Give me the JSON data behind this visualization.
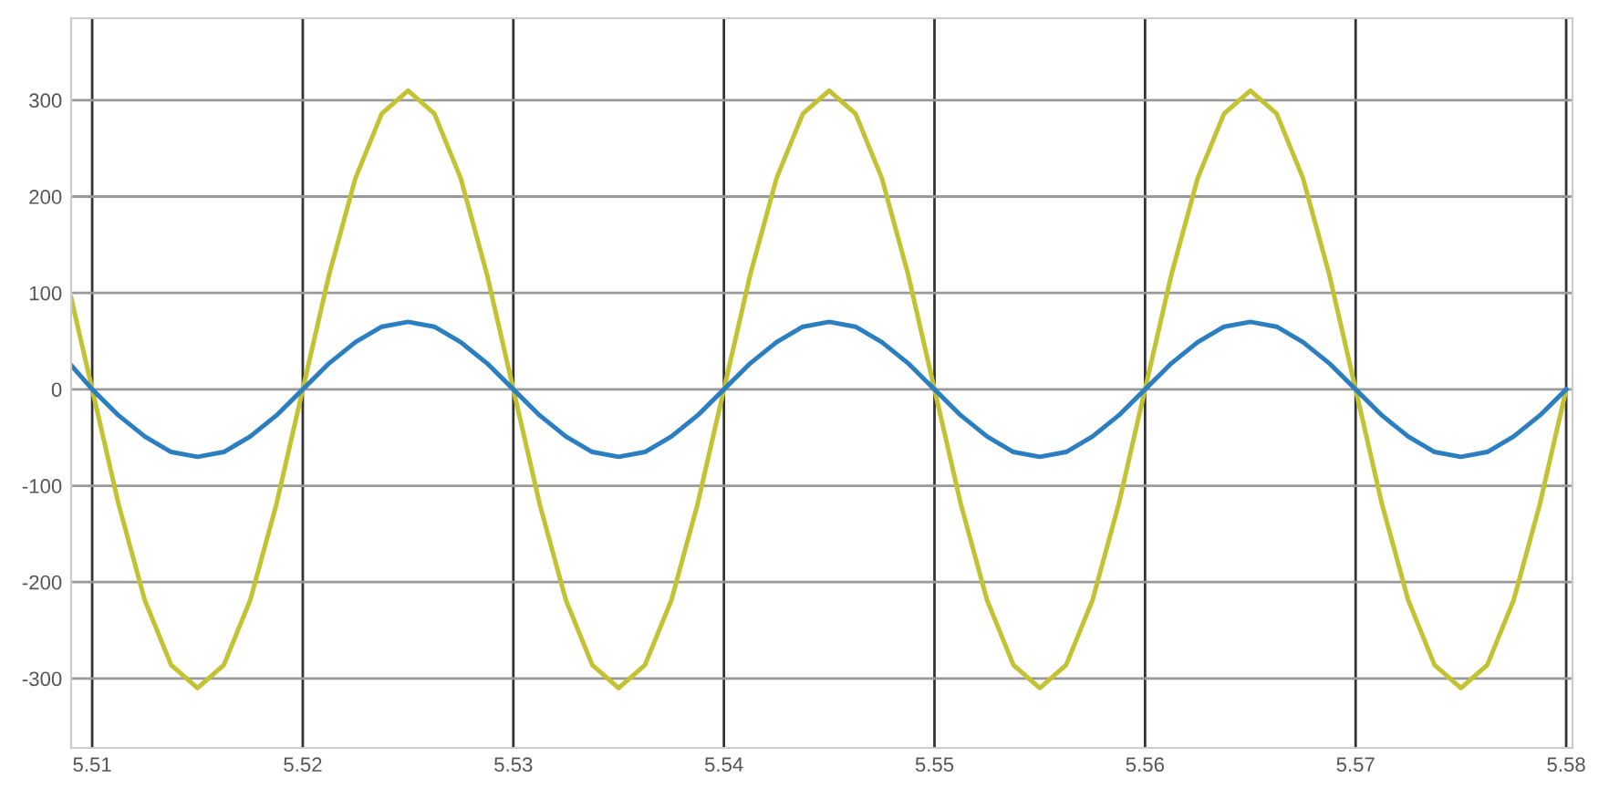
{
  "chart_data": {
    "type": "line",
    "x": [
      5.509,
      5.51,
      5.51125,
      5.5125,
      5.51375,
      5.515,
      5.51625,
      5.5175,
      5.51875,
      5.52,
      5.52125,
      5.5225,
      5.52375,
      5.525,
      5.52625,
      5.5275,
      5.52875,
      5.53,
      5.53125,
      5.5325,
      5.53375,
      5.535,
      5.53625,
      5.5375,
      5.53875,
      5.54,
      5.54125,
      5.5425,
      5.54375,
      5.545,
      5.54625,
      5.5475,
      5.54875,
      5.55,
      5.55125,
      5.5525,
      5.55375,
      5.555,
      5.55625,
      5.5575,
      5.55875,
      5.56,
      5.56125,
      5.5625,
      5.56375,
      5.565,
      5.56625,
      5.5675,
      5.56875,
      5.57,
      5.57125,
      5.5725,
      5.57375,
      5.575,
      5.57625,
      5.5775,
      5.57875,
      5.58
    ],
    "series": [
      {
        "color": "#c2c232",
        "values": [
          95,
          0,
          -119,
          -219,
          -286,
          -310,
          -286,
          -219,
          -119,
          0,
          119,
          219,
          286,
          310,
          286,
          219,
          119,
          0,
          -119,
          -219,
          -286,
          -310,
          -286,
          -219,
          -119,
          0,
          119,
          219,
          286,
          310,
          286,
          219,
          119,
          0,
          -119,
          -219,
          -286,
          -310,
          -286,
          -219,
          -119,
          0,
          119,
          219,
          286,
          310,
          286,
          219,
          119,
          0,
          -119,
          -219,
          -286,
          -310,
          -286,
          -219,
          -119,
          0
        ]
      },
      {
        "color": "#2b7fc1",
        "values": [
          25,
          0,
          -27,
          -49,
          -65,
          -70,
          -65,
          -49,
          -27,
          0,
          27,
          49,
          65,
          70,
          65,
          49,
          27,
          0,
          -27,
          -49,
          -65,
          -70,
          -65,
          -49,
          -27,
          0,
          27,
          49,
          65,
          70,
          65,
          49,
          27,
          0,
          -27,
          -49,
          -65,
          -70,
          -65,
          -49,
          -27,
          0,
          27,
          49,
          65,
          70,
          65,
          49,
          27,
          0,
          -27,
          -49,
          -65,
          -70,
          -65,
          -49,
          -27,
          0
        ]
      }
    ],
    "xlim": [
      5.509,
      5.5803
    ],
    "ylim": [
      -372,
      385
    ],
    "xticks": [
      5.51,
      5.52,
      5.53,
      5.54,
      5.55,
      5.56,
      5.57,
      5.58
    ],
    "yticks": [
      -300,
      -200,
      -100,
      0,
      100,
      200,
      300
    ],
    "grid": true,
    "marker": "none",
    "line_style": "solid"
  }
}
